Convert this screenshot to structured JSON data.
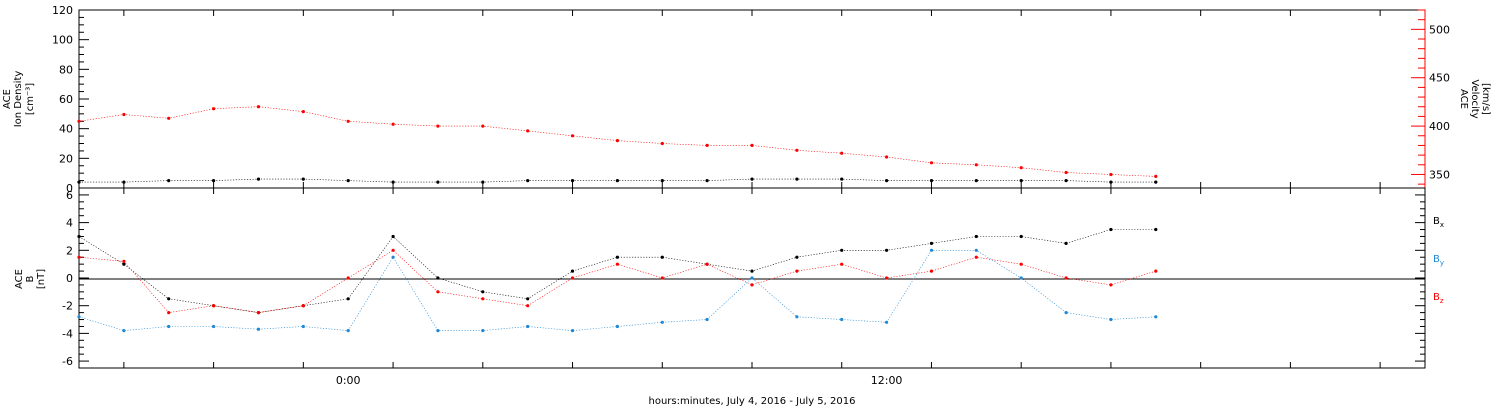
{
  "chart_data": [
    {
      "type": "scatter",
      "panel": "plasma",
      "xlabel": "hours:minutes, July  4, 2016 - July  5, 2016",
      "x_ticks": [
        "0:00",
        "12:00"
      ],
      "x_units": "hours since 2016-07-03 18:00",
      "xlim": [
        0,
        30
      ],
      "left_axis": {
        "label_lines": [
          "ACE",
          "Ion Density",
          "[cm⁻³]"
        ],
        "ylim": [
          0,
          120
        ],
        "ticks": [
          0,
          20,
          40,
          60,
          80,
          100,
          120
        ],
        "color": "#000000"
      },
      "right_axis": {
        "label_lines": [
          "ACE",
          "Velocity",
          "[km/s]"
        ],
        "ylim": [
          336,
          520
        ],
        "ticks": [
          350,
          400,
          450,
          500
        ],
        "color": "#ff0000"
      },
      "series": [
        {
          "axis": "left",
          "color": "#000000",
          "x": [
            0,
            1,
            2,
            3,
            4,
            5,
            6,
            7,
            8,
            9,
            10,
            11,
            12,
            13,
            14,
            15,
            16,
            17,
            18,
            19,
            20,
            21,
            22,
            23,
            24
          ],
          "y": [
            4,
            4,
            5,
            5,
            6,
            6,
            5,
            4,
            4,
            4,
            5,
            5,
            5,
            5,
            5,
            6,
            6,
            6,
            5,
            5,
            5,
            5,
            5,
            4,
            4
          ]
        },
        {
          "axis": "right",
          "color": "#ff0000",
          "x": [
            0,
            1,
            2,
            3,
            4,
            5,
            6,
            7,
            8,
            9,
            10,
            11,
            12,
            13,
            14,
            15,
            16,
            17,
            18,
            19,
            20,
            21,
            22,
            23,
            24
          ],
          "y": [
            405,
            412,
            408,
            418,
            420,
            415,
            405,
            402,
            400,
            400,
            395,
            390,
            385,
            382,
            380,
            380,
            375,
            372,
            368,
            362,
            360,
            357,
            352,
            350,
            348
          ]
        }
      ]
    },
    {
      "type": "scatter",
      "panel": "magnetic-field",
      "xlabel": "hours:minutes, July  4, 2016 - July  5, 2016",
      "x_ticks": [
        "0:00",
        "12:00"
      ],
      "x_units": "hours since 2016-07-03 18:00",
      "xlim": [
        0,
        30
      ],
      "left_axis": {
        "label_lines": [
          "ACE",
          "B",
          "[nT]"
        ],
        "ylim": [
          -6.5,
          6.5
        ],
        "ticks": [
          -6,
          -4,
          -2,
          0,
          2,
          4,
          6
        ],
        "color": "#000000"
      },
      "legend": [
        {
          "label": "B",
          "subscript": "x",
          "color": "#000000"
        },
        {
          "label": "B",
          "subscript": "y",
          "color": "#1e88d6"
        },
        {
          "label": "B",
          "subscript": "z",
          "color": "#ff0000"
        }
      ],
      "series": [
        {
          "name": "Bx",
          "color": "#000000",
          "x": [
            0,
            1,
            2,
            3,
            4,
            5,
            6,
            7,
            8,
            9,
            10,
            11,
            12,
            13,
            14,
            15,
            16,
            17,
            18,
            19,
            20,
            21,
            22,
            23,
            24
          ],
          "y": [
            3,
            1,
            -1.5,
            -2,
            -2.5,
            -2,
            -1.5,
            3,
            0,
            -1,
            -1.5,
            0.5,
            1.5,
            1.5,
            1,
            0.5,
            1.5,
            2,
            2,
            2.5,
            3,
            3,
            2.5,
            3.5,
            3.5
          ]
        },
        {
          "name": "By",
          "color": "#1e88d6",
          "x": [
            0,
            1,
            2,
            3,
            4,
            5,
            6,
            7,
            8,
            9,
            10,
            11,
            12,
            13,
            14,
            15,
            16,
            17,
            18,
            19,
            20,
            21,
            22,
            23,
            24
          ],
          "y": [
            -2.8,
            -3.8,
            -3.5,
            -3.5,
            -3.7,
            -3.5,
            -3.8,
            1.5,
            -3.8,
            -3.8,
            -3.5,
            -3.8,
            -3.5,
            -3.2,
            -3,
            0,
            -2.8,
            -3,
            -3.2,
            2,
            2,
            0,
            -2.5,
            -3,
            -2.8
          ]
        },
        {
          "name": "Bz",
          "color": "#ff0000",
          "x": [
            0,
            1,
            2,
            3,
            4,
            5,
            6,
            7,
            8,
            9,
            10,
            11,
            12,
            13,
            14,
            15,
            16,
            17,
            18,
            19,
            20,
            21,
            22,
            23,
            24
          ],
          "y": [
            1.5,
            1.2,
            -2.5,
            -2,
            -2.5,
            -2,
            0,
            2,
            -1,
            -1.5,
            -2,
            0,
            1,
            0,
            1,
            -0.5,
            0.5,
            1,
            0,
            0.5,
            1.5,
            1,
            0,
            -0.5,
            0.5
          ]
        }
      ]
    }
  ]
}
